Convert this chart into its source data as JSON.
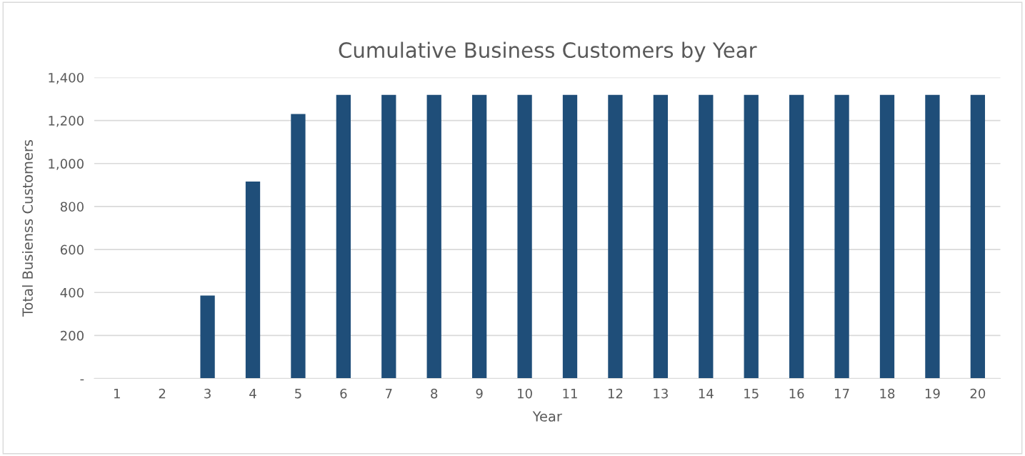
{
  "chart_data": {
    "type": "bar",
    "title": "Cumulative Business Customers by Year",
    "xlabel": "Year",
    "ylabel": "Total Busienss Customers",
    "categories": [
      "1",
      "2",
      "3",
      "4",
      "5",
      "6",
      "7",
      "8",
      "9",
      "10",
      "11",
      "12",
      "13",
      "14",
      "15",
      "16",
      "17",
      "18",
      "19",
      "20"
    ],
    "values": [
      0,
      0,
      386,
      916,
      1230,
      1319,
      1319,
      1319,
      1319,
      1319,
      1319,
      1319,
      1319,
      1319,
      1319,
      1319,
      1319,
      1319,
      1319,
      1319
    ],
    "color": "#1f4e79",
    "ylim": [
      0,
      1400
    ],
    "yticks": [
      {
        "value": 0,
        "label": "-"
      },
      {
        "value": 200,
        "label": "200"
      },
      {
        "value": 400,
        "label": "400"
      },
      {
        "value": 600,
        "label": "600"
      },
      {
        "value": 800,
        "label": "800"
      },
      {
        "value": 1000,
        "label": "1,000"
      },
      {
        "value": 1200,
        "label": "1,200"
      },
      {
        "value": 1400,
        "label": "1,400"
      }
    ],
    "grid": "y",
    "legend": false
  }
}
